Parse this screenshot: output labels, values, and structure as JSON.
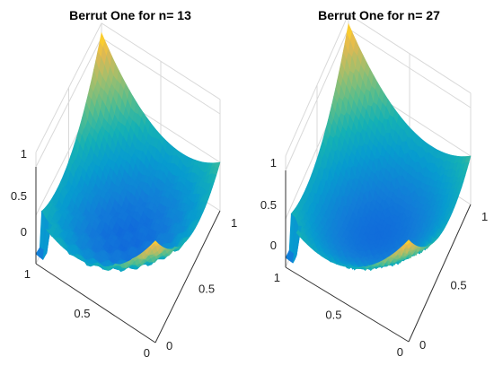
{
  "chart_data": [
    {
      "type": "surface",
      "title": "Berrut One for n= 13",
      "n": 13,
      "x_ticks": [
        "0",
        "0.5",
        "1"
      ],
      "y_ticks": [
        "0",
        "0.5",
        "1"
      ],
      "z_ticks": [
        "0",
        "0.5",
        "1"
      ],
      "xlim": [
        0,
        1
      ],
      "ylim": [
        0,
        1
      ],
      "zlim": [
        -0.25,
        1.15
      ],
      "grid": true,
      "colormap": "parula",
      "surface_points": [
        {
          "x": 0.0,
          "y": 0.0,
          "z": 0.0
        },
        {
          "x": 0.5,
          "y": 0.0,
          "z": 0.75
        },
        {
          "x": 1.0,
          "y": 0.0,
          "z": 1.05
        },
        {
          "x": 0.0,
          "y": 0.5,
          "z": 0.75
        },
        {
          "x": 0.5,
          "y": 0.5,
          "z": 0.05
        },
        {
          "x": 1.0,
          "y": 0.5,
          "z": 0.8
        },
        {
          "x": 0.0,
          "y": 1.0,
          "z": 1.0
        },
        {
          "x": 0.5,
          "y": 1.0,
          "z": 0.8
        },
        {
          "x": 1.0,
          "y": 1.0,
          "z": 0.1
        }
      ]
    },
    {
      "type": "surface",
      "title": "Berrut One for n= 27",
      "n": 27,
      "x_ticks": [
        "0",
        "0.5",
        "1"
      ],
      "y_ticks": [
        "0",
        "0.5",
        "1"
      ],
      "z_ticks": [
        "0",
        "0.5",
        "1"
      ],
      "xlim": [
        0,
        1
      ],
      "ylim": [
        0,
        1
      ],
      "zlim": [
        -0.25,
        1.15
      ],
      "grid": true,
      "colormap": "parula",
      "surface_points": [
        {
          "x": 0.0,
          "y": 0.0,
          "z": 0.0
        },
        {
          "x": 0.5,
          "y": 0.0,
          "z": 0.75
        },
        {
          "x": 1.0,
          "y": 0.0,
          "z": 1.05
        },
        {
          "x": 0.0,
          "y": 0.5,
          "z": 0.75
        },
        {
          "x": 0.5,
          "y": 0.5,
          "z": 0.0
        },
        {
          "x": 1.0,
          "y": 0.5,
          "z": 0.8
        },
        {
          "x": 0.0,
          "y": 1.0,
          "z": 1.0
        },
        {
          "x": 0.5,
          "y": 1.0,
          "z": 0.8
        },
        {
          "x": 1.0,
          "y": 1.0,
          "z": 0.1
        }
      ]
    }
  ]
}
